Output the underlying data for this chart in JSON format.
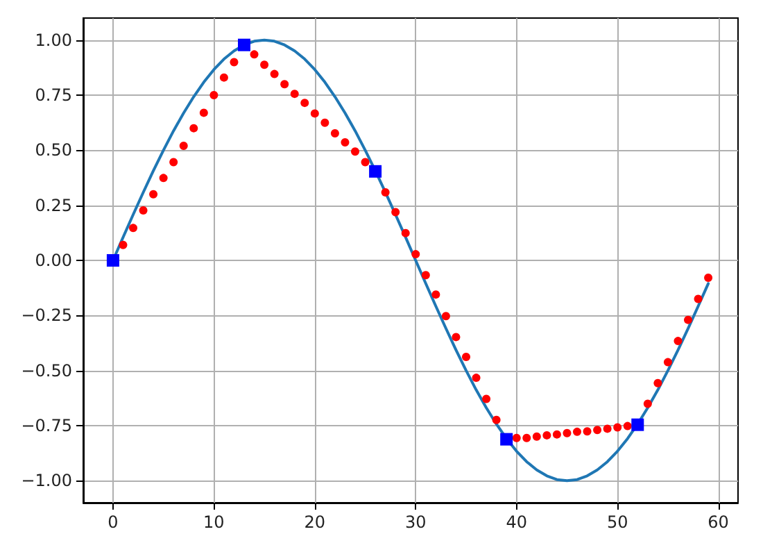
{
  "chart_data": {
    "type": "line",
    "xlim": [
      -2.95,
      61.95
    ],
    "xticks": [
      0,
      10,
      20,
      30,
      40,
      50,
      60
    ],
    "ylim": [
      -1.1,
      1.1
    ],
    "yticks": [
      {
        "value": -1,
        "label": "−1.00"
      },
      {
        "value": -0.75,
        "label": "−0.75"
      },
      {
        "value": -0.5,
        "label": "−0.50"
      },
      {
        "value": -0.25,
        "label": "−0.25"
      },
      {
        "value": 0,
        "label": "0.00"
      },
      {
        "value": 0.25,
        "label": "0.25"
      },
      {
        "value": 0.5,
        "label": "0.50"
      },
      {
        "value": 0.75,
        "label": "0.75"
      },
      {
        "value": 1,
        "label": "1.00"
      }
    ],
    "grid": true,
    "series": [
      {
        "color": "#1f77b4",
        "marker": "none",
        "line_style": "solid",
        "x": [
          0,
          1,
          2,
          3,
          4,
          5,
          6,
          7,
          8,
          9,
          10,
          11,
          12,
          13,
          14,
          15,
          16,
          17,
          18,
          19,
          20,
          21,
          22,
          23,
          24,
          25,
          26,
          27,
          28,
          29,
          30,
          31,
          32,
          33,
          34,
          35,
          36,
          37,
          38,
          39,
          40,
          41,
          42,
          43,
          44,
          45,
          46,
          47,
          48,
          49,
          50,
          51,
          52,
          53,
          54,
          55,
          56,
          57,
          58,
          59
        ],
        "values": [
          0,
          0.105,
          0.208,
          0.309,
          0.407,
          0.5,
          0.588,
          0.669,
          0.743,
          0.809,
          0.866,
          0.914,
          0.951,
          0.978,
          0.995,
          1,
          0.995,
          0.978,
          0.951,
          0.914,
          0.866,
          0.809,
          0.743,
          0.669,
          0.588,
          0.5,
          0.407,
          0.309,
          0.208,
          0.105,
          0,
          -0.105,
          -0.208,
          -0.309,
          -0.407,
          -0.5,
          -0.588,
          -0.669,
          -0.743,
          -0.809,
          -0.866,
          -0.914,
          -0.951,
          -0.978,
          -0.995,
          -1,
          -0.995,
          -0.978,
          -0.951,
          -0.914,
          -0.866,
          -0.809,
          -0.743,
          -0.669,
          -0.588,
          -0.5,
          -0.407,
          -0.309,
          -0.208,
          -0.105
        ]
      },
      {
        "type": "scatter",
        "color": "#ff0000",
        "marker": "circle",
        "x": [
          1,
          2,
          3,
          4,
          5,
          6,
          7,
          8,
          9,
          10,
          11,
          12,
          14,
          15,
          16,
          17,
          18,
          19,
          20,
          21,
          22,
          23,
          24,
          25,
          27,
          28,
          29,
          30,
          31,
          32,
          33,
          34,
          35,
          36,
          37,
          38,
          40,
          41,
          42,
          43,
          44,
          45,
          46,
          47,
          48,
          49,
          50,
          51,
          53,
          54,
          55,
          56,
          57,
          58,
          59
        ],
        "values": [
          0.07,
          0.147,
          0.227,
          0.3,
          0.374,
          0.446,
          0.52,
          0.6,
          0.67,
          0.75,
          0.83,
          0.9,
          0.935,
          0.888,
          0.846,
          0.8,
          0.756,
          0.715,
          0.667,
          0.625,
          0.577,
          0.536,
          0.494,
          0.446,
          0.309,
          0.219,
          0.124,
          0.028,
          -0.067,
          -0.155,
          -0.253,
          -0.348,
          -0.438,
          -0.533,
          -0.629,
          -0.724,
          -0.806,
          -0.806,
          -0.8,
          -0.794,
          -0.79,
          -0.784,
          -0.778,
          -0.776,
          -0.77,
          -0.764,
          -0.758,
          -0.752,
          -0.651,
          -0.557,
          -0.462,
          -0.366,
          -0.27,
          -0.175,
          -0.079
        ]
      },
      {
        "type": "scatter",
        "color": "#0000ff",
        "marker": "square",
        "x": [
          0,
          13,
          26,
          39,
          52
        ],
        "values": [
          0,
          0.978,
          0.404,
          -0.812,
          -0.746
        ]
      }
    ]
  }
}
